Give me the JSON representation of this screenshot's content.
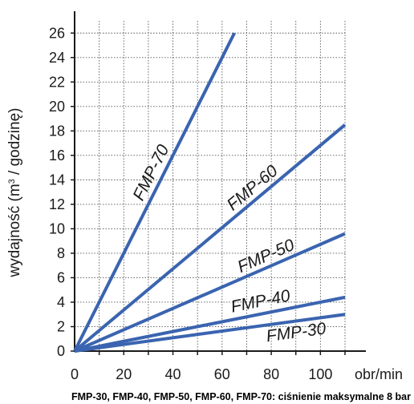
{
  "chart_data": {
    "type": "line",
    "xlabel": "obr/min",
    "ylabel": "wydajność (m³ / godzinę)",
    "ylabel_main": "wydajność (m",
    "ylabel_sup": "3",
    "ylabel_end": " / godzinę)",
    "xlim": [
      0,
      110
    ],
    "ylim": [
      0,
      27
    ],
    "x_ticks": [
      0,
      20,
      40,
      60,
      80,
      100
    ],
    "y_ticks": [
      0,
      2,
      4,
      6,
      8,
      10,
      12,
      14,
      16,
      18,
      20,
      22,
      24,
      26
    ],
    "grid": true,
    "series": [
      {
        "name": "FMP-70",
        "x": [
          0,
          65
        ],
        "y": [
          0,
          26
        ]
      },
      {
        "name": "FMP-60",
        "x": [
          0,
          110
        ],
        "y": [
          0,
          18.5
        ]
      },
      {
        "name": "FMP-50",
        "x": [
          0,
          110
        ],
        "y": [
          0,
          9.6
        ]
      },
      {
        "name": "FMP-40",
        "x": [
          0,
          110
        ],
        "y": [
          0,
          4.4
        ]
      },
      {
        "name": "FMP-30",
        "x": [
          0,
          110
        ],
        "y": [
          0,
          3.0
        ]
      }
    ],
    "line_color": "#3a64b0",
    "footnote": "FMP-30, FMP-40, FMP-50, FMP-60, FMP-70: ciśnienie maksymalne 8 bar"
  }
}
